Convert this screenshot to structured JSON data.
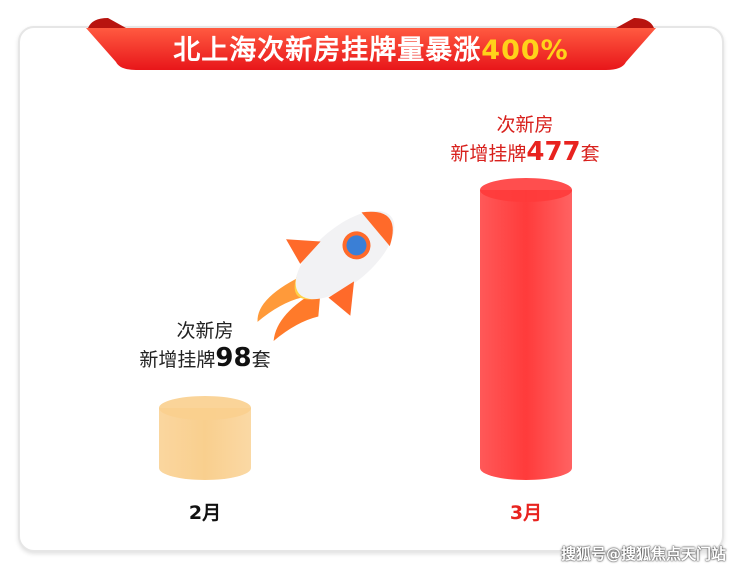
{
  "title": {
    "main": "北上海次新房挂牌量暴涨",
    "highlight": "400%"
  },
  "chart_data": {
    "type": "bar",
    "categories": [
      "2月",
      "3月"
    ],
    "values": [
      98,
      477
    ],
    "unit": "套",
    "labels": [
      {
        "line1": "次新房",
        "prefix": "新增挂牌",
        "value": "98",
        "suffix": "套"
      },
      {
        "line1": "次新房",
        "prefix": "新增挂牌",
        "value": "477",
        "suffix": "套"
      }
    ],
    "colors": [
      "#f9cf8e",
      "#ff3b3b"
    ],
    "label_value_colors": [
      "#111111",
      "#e8231f"
    ],
    "category_colors": [
      "#111111",
      "#e8231f"
    ]
  },
  "watermark": "搜狐号@搜狐焦点天门站",
  "colors": {
    "ribbon": "#f0281f",
    "highlight": "#ffd21a"
  }
}
